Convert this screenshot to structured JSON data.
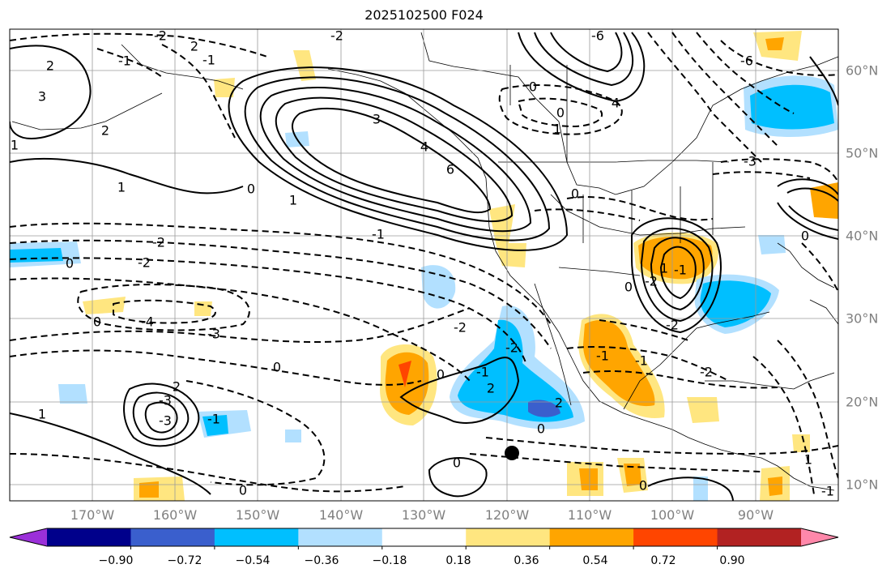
{
  "title": "2025102500 F024",
  "map": {
    "lon_range": [
      -180,
      -80
    ],
    "lat_range": [
      8,
      65
    ],
    "lon_ticks": [
      "170°W",
      "160°W",
      "150°W",
      "140°W",
      "130°W",
      "120°W",
      "110°W",
      "100°W",
      "90°W"
    ],
    "lat_ticks": [
      "60°N",
      "50°N",
      "40°N",
      "30°N",
      "20°N",
      "10°N"
    ],
    "grid": true
  },
  "contour_labels": [
    "2",
    "-2",
    "-1",
    "2",
    "1",
    "3",
    "3",
    "-2",
    "2",
    "1",
    "1",
    "0",
    "4",
    "6",
    "-1",
    "0",
    "0",
    "-6",
    "1",
    "4",
    "-6",
    "-3",
    "0",
    "-2",
    "0",
    "-2",
    "1",
    "0",
    "-2",
    "-1",
    "0",
    "-3",
    "-2",
    "-4",
    "-3",
    "0",
    "1",
    "2",
    "2",
    "0",
    "-1",
    "-2",
    "-1",
    "0",
    "0",
    "-1",
    "-3",
    "-1",
    "1",
    "-2",
    "-2",
    "2",
    "-1",
    "0",
    "0",
    "0",
    "-1"
  ],
  "marker": {
    "type": "point",
    "color": "#000000"
  },
  "colorbar": {
    "tick_labels": [
      "−0.90",
      "−0.72",
      "−0.54",
      "−0.36",
      "−0.18",
      "0.18",
      "0.36",
      "0.54",
      "0.72",
      "0.90"
    ],
    "colors": [
      "#9b30d9",
      "#00008b",
      "#3a5fcd",
      "#00bfff",
      "#b2e0ff",
      "#ffffff",
      "#ffe680",
      "#ffa500",
      "#ff4500",
      "#b22222",
      "#ff88aa"
    ]
  }
}
